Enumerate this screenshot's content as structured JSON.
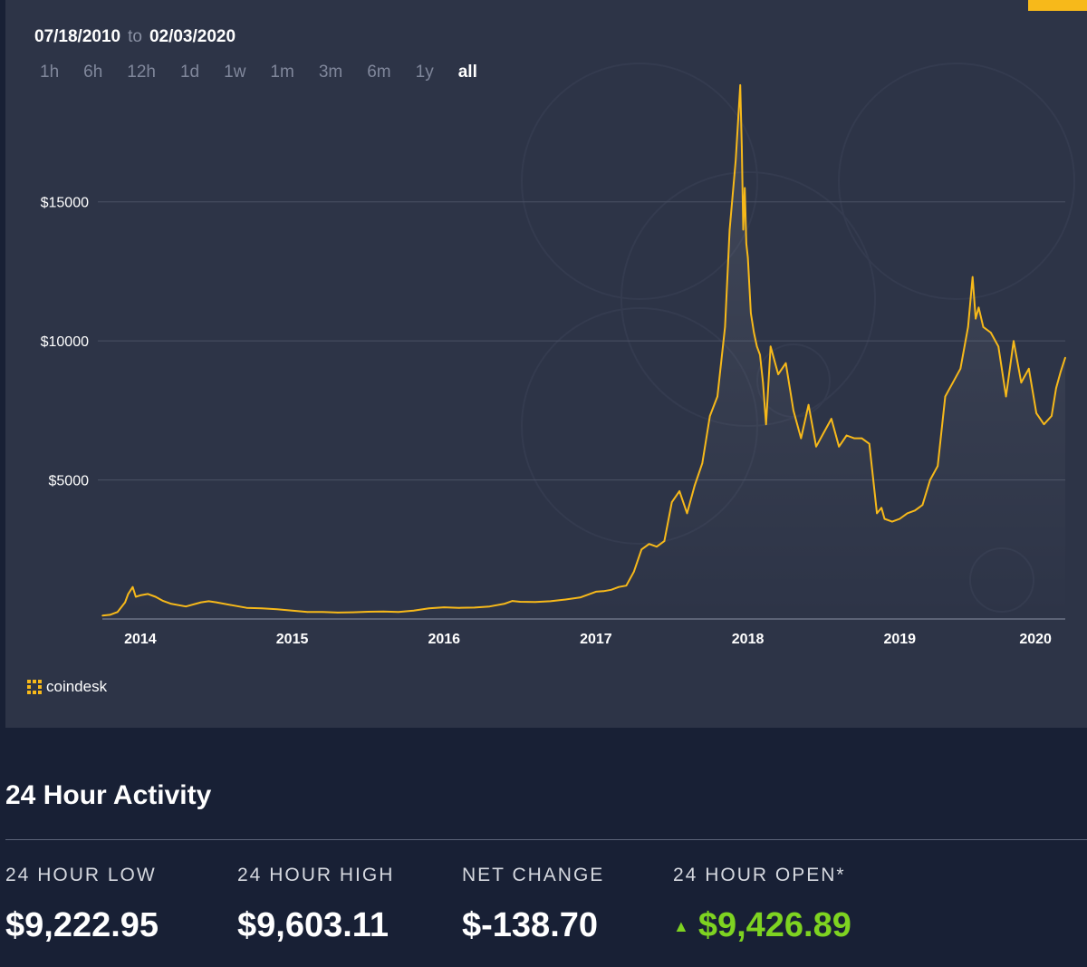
{
  "range": {
    "from": "07/18/2010",
    "to_label": "to",
    "to": "02/03/2020"
  },
  "range_buttons": [
    "1h",
    "6h",
    "12h",
    "1d",
    "1w",
    "1m",
    "3m",
    "6m",
    "1y",
    "all"
  ],
  "active_range": "all",
  "brand": {
    "name": "coindesk",
    "accent": "#f7b91a"
  },
  "chart_data": {
    "type": "area",
    "title": "",
    "xlabel": "",
    "ylabel": "",
    "x_ticks": [
      "2014",
      "2015",
      "2016",
      "2017",
      "2018",
      "2019",
      "2020"
    ],
    "y_ticks": [
      "$5000",
      "$10000",
      "$15000"
    ],
    "ylim": [
      0,
      19000
    ],
    "xlim": [
      2013.75,
      2020.09
    ],
    "grid": true,
    "line_color": "#f7b91a",
    "series": [
      {
        "x": [
          2013.75,
          2013.8,
          2013.85,
          2013.9,
          2013.92,
          2013.95,
          2013.97,
          2014.0,
          2014.05,
          2014.1,
          2014.15,
          2014.2,
          2014.3,
          2014.4,
          2014.45,
          2014.5,
          2014.6,
          2014.7,
          2014.8,
          2014.9,
          2015.0,
          2015.1,
          2015.2,
          2015.3,
          2015.4,
          2015.5,
          2015.6,
          2015.7,
          2015.8,
          2015.9,
          2016.0,
          2016.1,
          2016.2,
          2016.3,
          2016.4,
          2016.45,
          2016.5,
          2016.6,
          2016.7,
          2016.8,
          2016.9,
          2017.0,
          2017.05,
          2017.1,
          2017.15,
          2017.2,
          2017.25,
          2017.3,
          2017.35,
          2017.4,
          2017.45,
          2017.5,
          2017.55,
          2017.6,
          2017.65,
          2017.7,
          2017.75,
          2017.8,
          2017.85,
          2017.88,
          2017.92,
          2017.95,
          2017.96,
          2017.97,
          2017.98,
          2017.99,
          2018.0,
          2018.02,
          2018.04,
          2018.06,
          2018.08,
          2018.1,
          2018.12,
          2018.15,
          2018.2,
          2018.25,
          2018.3,
          2018.35,
          2018.4,
          2018.45,
          2018.5,
          2018.55,
          2018.6,
          2018.65,
          2018.7,
          2018.75,
          2018.8,
          2018.85,
          2018.88,
          2018.9,
          2018.95,
          2019.0,
          2019.05,
          2019.1,
          2019.15,
          2019.2,
          2019.25,
          2019.3,
          2019.35,
          2019.4,
          2019.45,
          2019.48,
          2019.5,
          2019.52,
          2019.55,
          2019.6,
          2019.65,
          2019.7,
          2019.75,
          2019.8,
          2019.82,
          2019.85,
          2019.9,
          2019.95,
          2020.0,
          2020.03,
          2020.06,
          2020.09
        ],
        "y": [
          120,
          150,
          250,
          600,
          900,
          1150,
          800,
          850,
          900,
          800,
          650,
          550,
          450,
          600,
          640,
          600,
          500,
          400,
          380,
          350,
          300,
          250,
          250,
          230,
          240,
          260,
          270,
          250,
          300,
          380,
          420,
          400,
          410,
          450,
          550,
          650,
          620,
          610,
          640,
          700,
          780,
          980,
          1000,
          1050,
          1150,
          1200,
          1700,
          2500,
          2700,
          2600,
          2800,
          4200,
          4600,
          3800,
          4800,
          5600,
          7300,
          8000,
          10500,
          14000,
          16500,
          19200,
          17000,
          14000,
          15500,
          13500,
          13000,
          11000,
          10300,
          9800,
          9500,
          8500,
          7000,
          9800,
          8800,
          9200,
          7500,
          6500,
          7700,
          6200,
          6700,
          7200,
          6200,
          6600,
          6500,
          6500,
          6300,
          3800,
          4000,
          3600,
          3500,
          3600,
          3800,
          3900,
          4100,
          5000,
          5500,
          8000,
          8500,
          9000,
          10500,
          12300,
          10800,
          11200,
          10500,
          10300,
          9800,
          8000,
          10000,
          8500,
          8700,
          9000,
          7400,
          7000,
          7300,
          8300,
          8900,
          9400
        ]
      }
    ]
  },
  "activity": {
    "title": "24 Hour Activity",
    "stats": [
      {
        "label": "24 HOUR LOW",
        "value": "$9,222.95"
      },
      {
        "label": "24 HOUR HIGH",
        "value": "$9,603.11"
      },
      {
        "label": "NET CHANGE",
        "value": "$-138.70"
      },
      {
        "label": "24 HOUR OPEN*",
        "value": "$9,426.89"
      }
    ],
    "positive_color": "#7ed321"
  }
}
